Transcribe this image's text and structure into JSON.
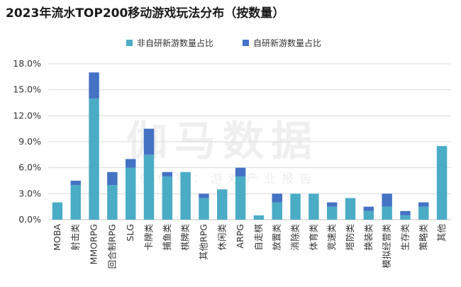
{
  "chart_data": {
    "type": "bar",
    "stacked": true,
    "title": "2023年流水TOP200移动游戏玩法分布（按数量）",
    "categories": [
      "MOBA",
      "射击类",
      "MMORPG",
      "回合制RPG",
      "SLG",
      "卡牌类",
      "捕鱼类",
      "棋牌类",
      "其他RPG",
      "休闲类",
      "ARPG",
      "自走棋",
      "放置类",
      "消除类",
      "体育类",
      "竞速类",
      "塔防类",
      "换装类",
      "模拟经营类",
      "生存类",
      "策略类",
      "其他"
    ],
    "series": [
      {
        "name": "非自研新游数量占比",
        "color": "#4bacc6",
        "values": [
          2.0,
          4.0,
          14.0,
          4.0,
          6.0,
          7.5,
          5.0,
          5.5,
          2.5,
          3.5,
          5.0,
          0.5,
          2.0,
          3.0,
          3.0,
          1.5,
          2.5,
          1.0,
          1.5,
          0.5,
          1.5,
          8.5
        ]
      },
      {
        "name": "自研新游数量占比",
        "color": "#4472c4",
        "values": [
          0,
          0.5,
          3.0,
          1.5,
          1.0,
          3.0,
          0.5,
          0,
          0.5,
          0,
          1.0,
          0,
          1.0,
          0,
          0,
          0.5,
          0,
          0.5,
          1.5,
          0.5,
          0.5,
          0
        ]
      }
    ],
    "ylim": [
      0,
      18
    ],
    "yticks": [
      "0.0%",
      "3.0%",
      "6.0%",
      "9.0%",
      "12.0%",
      "15.0%",
      "18.0%"
    ],
    "grid": true,
    "legend": "top"
  },
  "watermark": {
    "main": "伽马数据",
    "sub": "微信号：游戏产业报告"
  }
}
